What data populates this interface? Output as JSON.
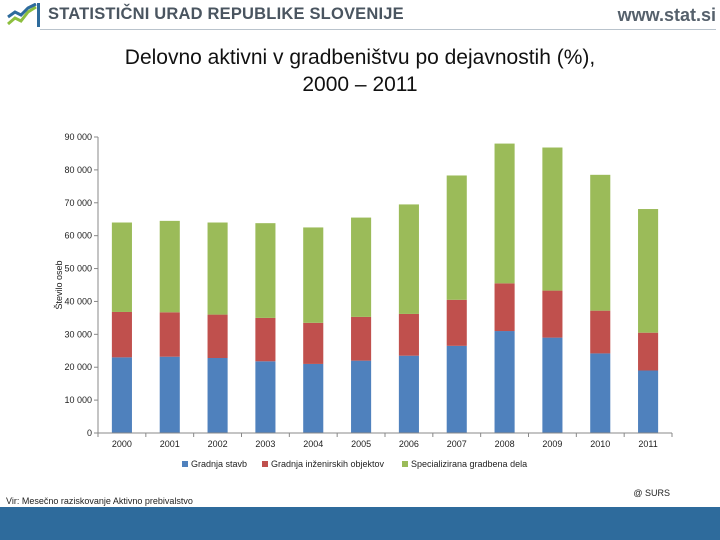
{
  "header": {
    "org_name": "STATISTIČNI URAD REPUBLIKE SLOVENIJE",
    "website": "www.stat.si",
    "colors": {
      "logo_blue": "#2e6b9c",
      "logo_green": "#8dbf3f",
      "text": "#4a5560"
    }
  },
  "footer": {
    "source": "Vir: Mesečno raziskovanje Aktivno prebivalstvo",
    "copyright": "@ SURS",
    "bar_color": "#2e6b9c"
  },
  "chart_data": {
    "type": "bar",
    "stacked": true,
    "title": "Delovno aktivni v gradbeništvu po dejavnostih (%),\n2000 – 2011",
    "xlabel": "",
    "ylabel": "Število oseb",
    "ylim": [
      0,
      90000
    ],
    "yticks": [
      0,
      10000,
      20000,
      30000,
      40000,
      50000,
      60000,
      70000,
      80000,
      90000
    ],
    "ytick_labels": [
      "0",
      "10 000",
      "20 000",
      "30 000",
      "40 000",
      "50 000",
      "60 000",
      "70 000",
      "80 000",
      "90 000"
    ],
    "grid": false,
    "legend_position": "bottom",
    "categories": [
      "2000",
      "2001",
      "2002",
      "2003",
      "2004",
      "2005",
      "2006",
      "2007",
      "2008",
      "2009",
      "2010",
      "2011"
    ],
    "series": [
      {
        "name": "Gradnja stavb",
        "color": "#4f81bd",
        "values": [
          23000,
          23200,
          22800,
          21800,
          21000,
          22000,
          23500,
          26500,
          31000,
          29000,
          24200,
          19000
        ]
      },
      {
        "name": "Gradnja inženirskih objektov",
        "color": "#c0504d",
        "values": [
          13800,
          13500,
          13200,
          13200,
          12500,
          13300,
          12700,
          14000,
          14500,
          14300,
          13000,
          11500
        ]
      },
      {
        "name": "Specializirana gradbena dela",
        "color": "#9bbb59",
        "values": [
          27200,
          27800,
          28000,
          28800,
          29000,
          30200,
          33300,
          37800,
          42500,
          43500,
          41300,
          37600
        ]
      }
    ]
  }
}
